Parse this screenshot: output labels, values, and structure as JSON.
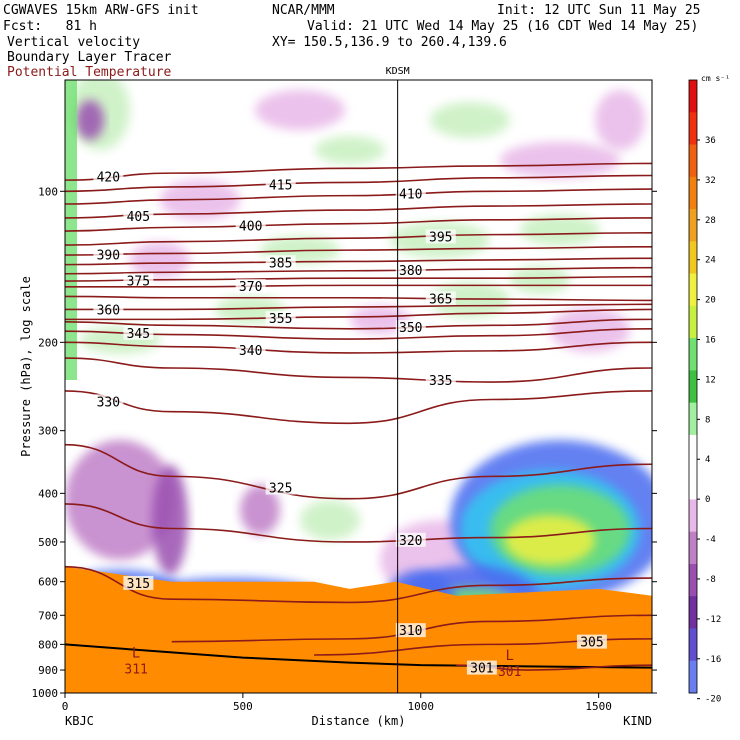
{
  "header": {
    "model": "CGWAVES 15km ARW-GFS init",
    "org": "NCAR/MMM",
    "init": "Init: 12 UTC Sun 11 May 25",
    "fcst": "Fcst:   81 h",
    "valid": "Valid: 21 UTC Wed 14 May 25 (16 CDT Wed 14 May 25)",
    "field1": "Vertical velocity",
    "xy": "XY= 150.5,136.9 to 260.4,139.6",
    "field2": "Boundary Layer Tracer",
    "field3": "Potential Temperature"
  },
  "colors": {
    "theta": "#8b1a1a",
    "terrain": "#ff8c00",
    "frame": "#000000"
  },
  "chart_data": {
    "type": "heatmap",
    "title": "",
    "xlabel": "Distance (km)",
    "ylabel": "Pressure (hPa), log scale",
    "xlim": [
      0,
      1650
    ],
    "ylim": [
      1000,
      60
    ],
    "y_scale": "log",
    "x_ticks": [
      {
        "v": 0,
        "label": "0"
      },
      {
        "v": 500,
        "label": "500"
      },
      {
        "v": 1000,
        "label": "1000"
      },
      {
        "v": 1500,
        "label": "1500"
      }
    ],
    "y_ticks": [
      100,
      200,
      300,
      400,
      500,
      600,
      700,
      800,
      900,
      1000
    ],
    "endpoints": {
      "left": "KBJC",
      "right": "KIND"
    },
    "station_marker": {
      "label": "KDSM",
      "x_km": 935
    },
    "colorbar": {
      "unit": "cm s⁻¹",
      "ticks": [
        36,
        32,
        28,
        24,
        20,
        16,
        12,
        8,
        4,
        0,
        -4,
        -8,
        -12,
        -16,
        -20
      ]
    },
    "isentropes": [
      {
        "label": "420",
        "pts": [
          [
            0,
            95
          ],
          [
            300,
            92
          ],
          [
            800,
            90
          ],
          [
            1200,
            89
          ],
          [
            1650,
            88
          ]
        ]
      },
      {
        "label": "415",
        "pts": [
          [
            0,
            100
          ],
          [
            300,
            98
          ],
          [
            800,
            96
          ],
          [
            1200,
            94
          ],
          [
            1650,
            93
          ]
        ]
      },
      {
        "label": "410",
        "pts": [
          [
            0,
            106
          ],
          [
            300,
            104
          ],
          [
            800,
            102
          ],
          [
            1200,
            100
          ],
          [
            1650,
            99
          ]
        ]
      },
      {
        "label": "405",
        "pts": [
          [
            0,
            113
          ],
          [
            300,
            111
          ],
          [
            800,
            109
          ],
          [
            1200,
            107
          ],
          [
            1650,
            106
          ]
        ]
      },
      {
        "label": "400",
        "pts": [
          [
            0,
            120
          ],
          [
            300,
            118
          ],
          [
            800,
            116
          ],
          [
            1200,
            114
          ],
          [
            1650,
            113
          ]
        ]
      },
      {
        "label": "395",
        "pts": [
          [
            0,
            128
          ],
          [
            300,
            126
          ],
          [
            800,
            124
          ],
          [
            1200,
            122
          ],
          [
            1650,
            121
          ]
        ]
      },
      {
        "label": "390",
        "pts": [
          [
            0,
            134
          ],
          [
            300,
            133
          ],
          [
            800,
            131
          ],
          [
            1200,
            130
          ],
          [
            1650,
            129
          ]
        ]
      },
      {
        "label": "385",
        "pts": [
          [
            0,
            140
          ],
          [
            300,
            139
          ],
          [
            800,
            138
          ],
          [
            1200,
            137
          ],
          [
            1650,
            136
          ]
        ]
      },
      {
        "label": "380",
        "pts": [
          [
            0,
            146
          ],
          [
            300,
            145
          ],
          [
            800,
            144
          ],
          [
            1200,
            143
          ],
          [
            1650,
            142
          ]
        ]
      },
      {
        "label": "375",
        "pts": [
          [
            0,
            151
          ],
          [
            300,
            150
          ],
          [
            800,
            149
          ],
          [
            1200,
            149
          ],
          [
            1650,
            148
          ]
        ]
      },
      {
        "label": "370",
        "pts": [
          [
            0,
            155
          ],
          [
            300,
            155
          ],
          [
            800,
            154
          ],
          [
            1200,
            154
          ],
          [
            1650,
            154
          ]
        ]
      },
      {
        "label": "365",
        "pts": [
          [
            0,
            162
          ],
          [
            300,
            163
          ],
          [
            800,
            163
          ],
          [
            1200,
            164
          ],
          [
            1650,
            165
          ]
        ]
      },
      {
        "label": "360",
        "pts": [
          [
            0,
            172
          ],
          [
            300,
            172
          ],
          [
            800,
            170
          ],
          [
            1200,
            169
          ],
          [
            1650,
            168
          ]
        ]
      },
      {
        "label": "355",
        "pts": [
          [
            0,
            180
          ],
          [
            300,
            180
          ],
          [
            800,
            178
          ],
          [
            1200,
            175
          ],
          [
            1650,
            172
          ]
        ]
      },
      {
        "label": "350",
        "pts": [
          [
            0,
            182
          ],
          [
            300,
            185
          ],
          [
            800,
            188
          ],
          [
            1200,
            185
          ],
          [
            1650,
            180
          ]
        ]
      },
      {
        "label": "345",
        "pts": [
          [
            0,
            190
          ],
          [
            300,
            193
          ],
          [
            800,
            197
          ],
          [
            1200,
            194
          ],
          [
            1650,
            188
          ]
        ]
      },
      {
        "label": "340",
        "pts": [
          [
            0,
            200
          ],
          [
            300,
            204
          ],
          [
            800,
            210
          ],
          [
            1200,
            208
          ],
          [
            1650,
            200
          ]
        ]
      },
      {
        "label": "335",
        "pts": [
          [
            0,
            215
          ],
          [
            300,
            225
          ],
          [
            800,
            235
          ],
          [
            1200,
            240
          ],
          [
            1650,
            225
          ]
        ]
      },
      {
        "label": "330",
        "pts": [
          [
            0,
            250
          ],
          [
            300,
            275
          ],
          [
            800,
            290
          ],
          [
            1200,
            260
          ],
          [
            1650,
            250
          ]
        ]
      },
      {
        "label": "325",
        "pts": [
          [
            0,
            320
          ],
          [
            300,
            370
          ],
          [
            800,
            410
          ],
          [
            1200,
            370
          ],
          [
            1650,
            350
          ]
        ]
      },
      {
        "label": "320",
        "pts": [
          [
            0,
            420
          ],
          [
            300,
            470
          ],
          [
            800,
            500
          ],
          [
            1200,
            490
          ],
          [
            1650,
            470
          ]
        ]
      },
      {
        "label": "315",
        "pts": [
          [
            0,
            560
          ],
          [
            300,
            650
          ],
          [
            800,
            660
          ],
          [
            1200,
            610
          ],
          [
            1650,
            590
          ]
        ]
      },
      {
        "label": "310",
        "pts": [
          [
            300,
            790
          ],
          [
            800,
            780
          ],
          [
            1200,
            720
          ],
          [
            1650,
            700
          ]
        ]
      },
      {
        "label": "305",
        "pts": [
          [
            700,
            840
          ],
          [
            1200,
            800
          ],
          [
            1650,
            780
          ]
        ]
      },
      {
        "label": "301",
        "pts": [
          [
            1100,
            880
          ],
          [
            1300,
            900
          ],
          [
            1650,
            880
          ]
        ]
      }
    ],
    "lows": [
      {
        "label": "L",
        "value": "311",
        "x_km": 200,
        "p": 850
      },
      {
        "label": "L",
        "value": "301",
        "x_km": 1250,
        "p": 860
      }
    ],
    "terrain_surface_hpa": [
      [
        0,
        800
      ],
      [
        200,
        820
      ],
      [
        500,
        850
      ],
      [
        800,
        870
      ],
      [
        1000,
        880
      ],
      [
        1300,
        885
      ],
      [
        1650,
        890
      ]
    ]
  }
}
